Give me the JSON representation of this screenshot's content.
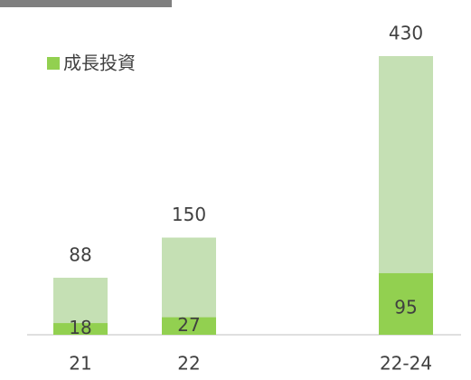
{
  "chart_data": {
    "type": "bar",
    "categories": [
      "21",
      "22",
      "22-24"
    ],
    "values": [
      88,
      150,
      430
    ],
    "color": "#c5e0b4",
    "series": [
      {
        "name": "成長投資",
        "color": "#92d050",
        "values": [
          18,
          27,
          95
        ]
      }
    ]
  }
}
